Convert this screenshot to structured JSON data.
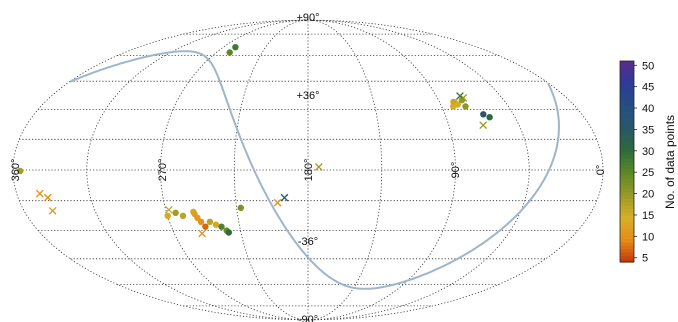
{
  "chart_data": {
    "type": "scatter",
    "projection": "mollweide",
    "x_ticks": [
      "360°",
      "270°",
      "180°",
      "90°",
      "0°"
    ],
    "y_ticks": [
      "+90°",
      "+36°",
      "-36°",
      "-90°"
    ],
    "grid": true,
    "colorbar": {
      "label": "No. of data points",
      "min": 4,
      "max": 51,
      "ticks": [
        "5",
        "10",
        "15",
        "20",
        "25",
        "30",
        "35",
        "40",
        "45",
        "50"
      ],
      "colors": [
        "#c2360f",
        "#e58c16",
        "#d6b028",
        "#9a9a26",
        "#5c8a26",
        "#2f6a3a",
        "#285868",
        "#264f83",
        "#2c3a96",
        "#5a2c8e"
      ]
    },
    "galactic_plane_color": "#9fb5cc",
    "circles": [
      {
        "lon": 257.2,
        "lat": 65.5,
        "n": 28
      },
      {
        "lon": 256.9,
        "lat": 62.0,
        "n": 25
      },
      {
        "lon": 82.2,
        "lat": 31.5,
        "n": 14
      },
      {
        "lon": 80.4,
        "lat": 33.9,
        "n": 13
      },
      {
        "lon": 79.7,
        "lat": 33.7,
        "n": 16
      },
      {
        "lon": 78.5,
        "lat": 32.5,
        "n": 14
      },
      {
        "lon": 73.9,
        "lat": 34.8,
        "n": 20
      },
      {
        "lon": 73.9,
        "lat": 31.5,
        "n": 21
      },
      {
        "lon": 64.8,
        "lat": 27.5,
        "n": 36
      },
      {
        "lon": 61.6,
        "lat": 26.0,
        "n": 31
      },
      {
        "lon": 355.6,
        "lat": -0.5,
        "n": 19
      },
      {
        "lon": 269.9,
        "lat": -22.5,
        "n": 13
      },
      {
        "lon": 264.3,
        "lat": -21.0,
        "n": 19
      },
      {
        "lon": 260.1,
        "lat": -22.5,
        "n": 17
      },
      {
        "lon": 252.9,
        "lat": -20.5,
        "n": 15
      },
      {
        "lon": 252.4,
        "lat": -21.5,
        "n": 12
      },
      {
        "lon": 251.2,
        "lat": -23.5,
        "n": 11
      },
      {
        "lon": 249.5,
        "lat": -25.5,
        "n": 10
      },
      {
        "lon": 247.6,
        "lat": -28.0,
        "n": 7
      },
      {
        "lon": 243.8,
        "lat": -25.5,
        "n": 17
      },
      {
        "lon": 240.3,
        "lat": -27.0,
        "n": 13
      },
      {
        "lon": 237.0,
        "lat": -28.0,
        "n": 26
      },
      {
        "lon": 234.2,
        "lat": -30.0,
        "n": 24
      },
      {
        "lon": 233.2,
        "lat": -31.0,
        "n": 30
      },
      {
        "lon": 222.4,
        "lat": -18.5,
        "n": 22
      }
    ],
    "crosses": [
      {
        "lon": 345.7,
        "lat": -11.5,
        "n": 10
      },
      {
        "lon": 341.5,
        "lat": -13.5,
        "n": 9
      },
      {
        "lon": 341.9,
        "lat": -20.0,
        "n": 10
      },
      {
        "lon": 268.1,
        "lat": -19.5,
        "n": 16
      },
      {
        "lon": 251.3,
        "lat": -31.5,
        "n": 10
      },
      {
        "lon": 194.6,
        "lat": -13.5,
        "n": 37
      },
      {
        "lon": 199.0,
        "lat": -16.0,
        "n": 10
      },
      {
        "lon": 173.4,
        "lat": 1.5,
        "n": 19
      },
      {
        "lon": 73.4,
        "lat": 37.0,
        "n": 30
      },
      {
        "lon": 71.9,
        "lat": 36.0,
        "n": 20
      },
      {
        "lon": 68.0,
        "lat": 22.0,
        "n": 20
      }
    ]
  }
}
